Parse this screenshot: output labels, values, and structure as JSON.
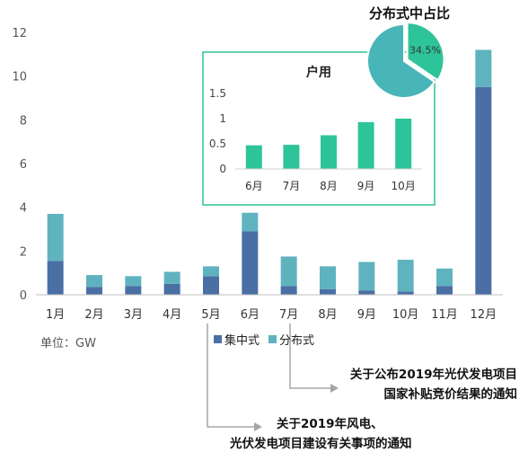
{
  "chart_data": [
    {
      "type": "bar",
      "stacked": true,
      "categories": [
        "1月",
        "2月",
        "3月",
        "4月",
        "5月",
        "6月",
        "7月",
        "8月",
        "9月",
        "10月",
        "11月",
        "12月"
      ],
      "series": [
        {
          "name": "集中式",
          "color": "#4a6fa5",
          "values": [
            1.55,
            0.35,
            0.4,
            0.5,
            0.85,
            2.9,
            0.4,
            0.25,
            0.2,
            0.15,
            0.4,
            9.5
          ]
        },
        {
          "name": "分布式",
          "color": "#5fb3bf",
          "values": [
            2.15,
            0.55,
            0.45,
            0.55,
            0.45,
            0.85,
            1.35,
            1.05,
            1.3,
            1.45,
            0.8,
            1.7
          ]
        }
      ],
      "yticks": [
        "0",
        "2",
        "4",
        "6",
        "8",
        "10",
        "12"
      ],
      "ylim": [
        0,
        12
      ],
      "unit_label": "单位：GW",
      "grid": false,
      "legend": "bottom"
    },
    {
      "type": "bar",
      "title": "户用",
      "categories": [
        "6月",
        "7月",
        "8月",
        "9月",
        "10月"
      ],
      "values": [
        0.47,
        0.48,
        0.67,
        0.93,
        1.0
      ],
      "color": "#2ec499",
      "yticks": [
        "0",
        "0.5",
        "1",
        "1.5"
      ],
      "ylim": [
        0,
        1.5
      ]
    },
    {
      "type": "pie",
      "title": "分布式中占比",
      "slices": [
        {
          "value": 34.5,
          "label": "34.5%",
          "color": "#2ec499"
        },
        {
          "value": 65.5,
          "color": "#48b5b8"
        }
      ]
    }
  ],
  "annotations": {
    "note1_line1": "关于公布2019年光伏发电项目",
    "note1_line2": "国家补贴竞价结果的通知",
    "note2_line1": "关于2019年风电、",
    "note2_line2": "光伏发电项目建设有关事项的通知"
  }
}
